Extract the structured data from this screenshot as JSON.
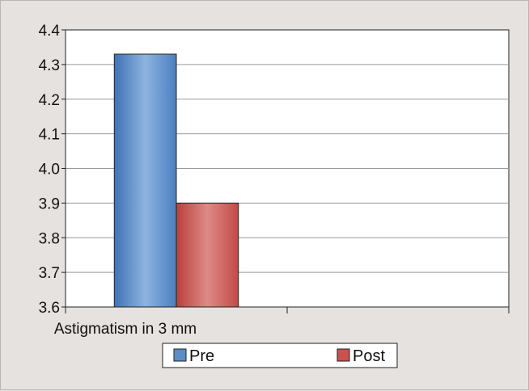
{
  "chart_data": {
    "type": "bar",
    "categories": [
      "Astigmatism in 3 mm",
      ""
    ],
    "series": [
      {
        "name": "Pre",
        "values": [
          4.33,
          null
        ],
        "color": "#5b8dc8"
      },
      {
        "name": "Post",
        "values": [
          3.9,
          null
        ],
        "color": "#c9524f"
      }
    ],
    "ylim": [
      3.6,
      4.4
    ],
    "yticks": [
      "3.6",
      "3.7",
      "3.8",
      "3.9",
      "4.0",
      "4.1",
      "4.2",
      "4.3",
      "4.4"
    ],
    "grid": true,
    "legend": "bottom",
    "title": "",
    "xlabel": "",
    "ylabel": ""
  }
}
